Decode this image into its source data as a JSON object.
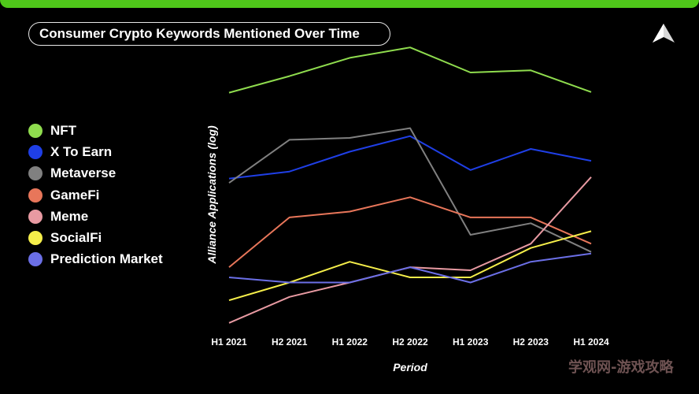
{
  "header": {
    "title": "Consumer Crypto Keywords Mentioned Over Time",
    "accent_color": "#4fc71a"
  },
  "logo": {
    "icon": "triangle-logo-icon"
  },
  "watermark": {
    "text": "学观网-游戏攻略"
  },
  "chart_data": {
    "type": "line",
    "title": "Consumer Crypto Keywords Mentioned Over Time",
    "xlabel": "Period",
    "ylabel": "Alliance Applications (log)",
    "yscale": "log",
    "grid": false,
    "legend_position": "left",
    "categories": [
      "H1 2021",
      "H2 2021",
      "H1 2022",
      "H2 2022",
      "H1 2023",
      "H2 2023",
      "H1 2024"
    ],
    "ylim": [
      0,
      1
    ],
    "series": [
      {
        "name": "NFT",
        "color": "#8fdc4e",
        "values": [
          0.8,
          0.854,
          0.914,
          0.948,
          0.866,
          0.873,
          0.802
        ]
      },
      {
        "name": "X To Earn",
        "color": "#1f3fe6",
        "values": [
          0.519,
          0.542,
          0.607,
          0.658,
          0.547,
          0.616,
          0.577
        ]
      },
      {
        "name": "Metaverse",
        "color": "#808080",
        "values": [
          0.505,
          0.646,
          0.652,
          0.684,
          0.335,
          0.373,
          0.279
        ]
      },
      {
        "name": "GameFi",
        "color": "#e8765a",
        "values": [
          0.229,
          0.392,
          0.411,
          0.458,
          0.392,
          0.392,
          0.306
        ]
      },
      {
        "name": "Meme",
        "color": "#e89aa2",
        "values": [
          0.047,
          0.132,
          0.179,
          0.229,
          0.219,
          0.306,
          0.524
        ]
      },
      {
        "name": "SocialFi",
        "color": "#f5ee4a",
        "values": [
          0.121,
          0.179,
          0.247,
          0.196,
          0.196,
          0.292,
          0.347
        ]
      },
      {
        "name": "Prediction Market",
        "color": "#6b6fe6",
        "values": [
          0.196,
          0.179,
          0.179,
          0.229,
          0.179,
          0.247,
          0.274
        ]
      }
    ]
  }
}
